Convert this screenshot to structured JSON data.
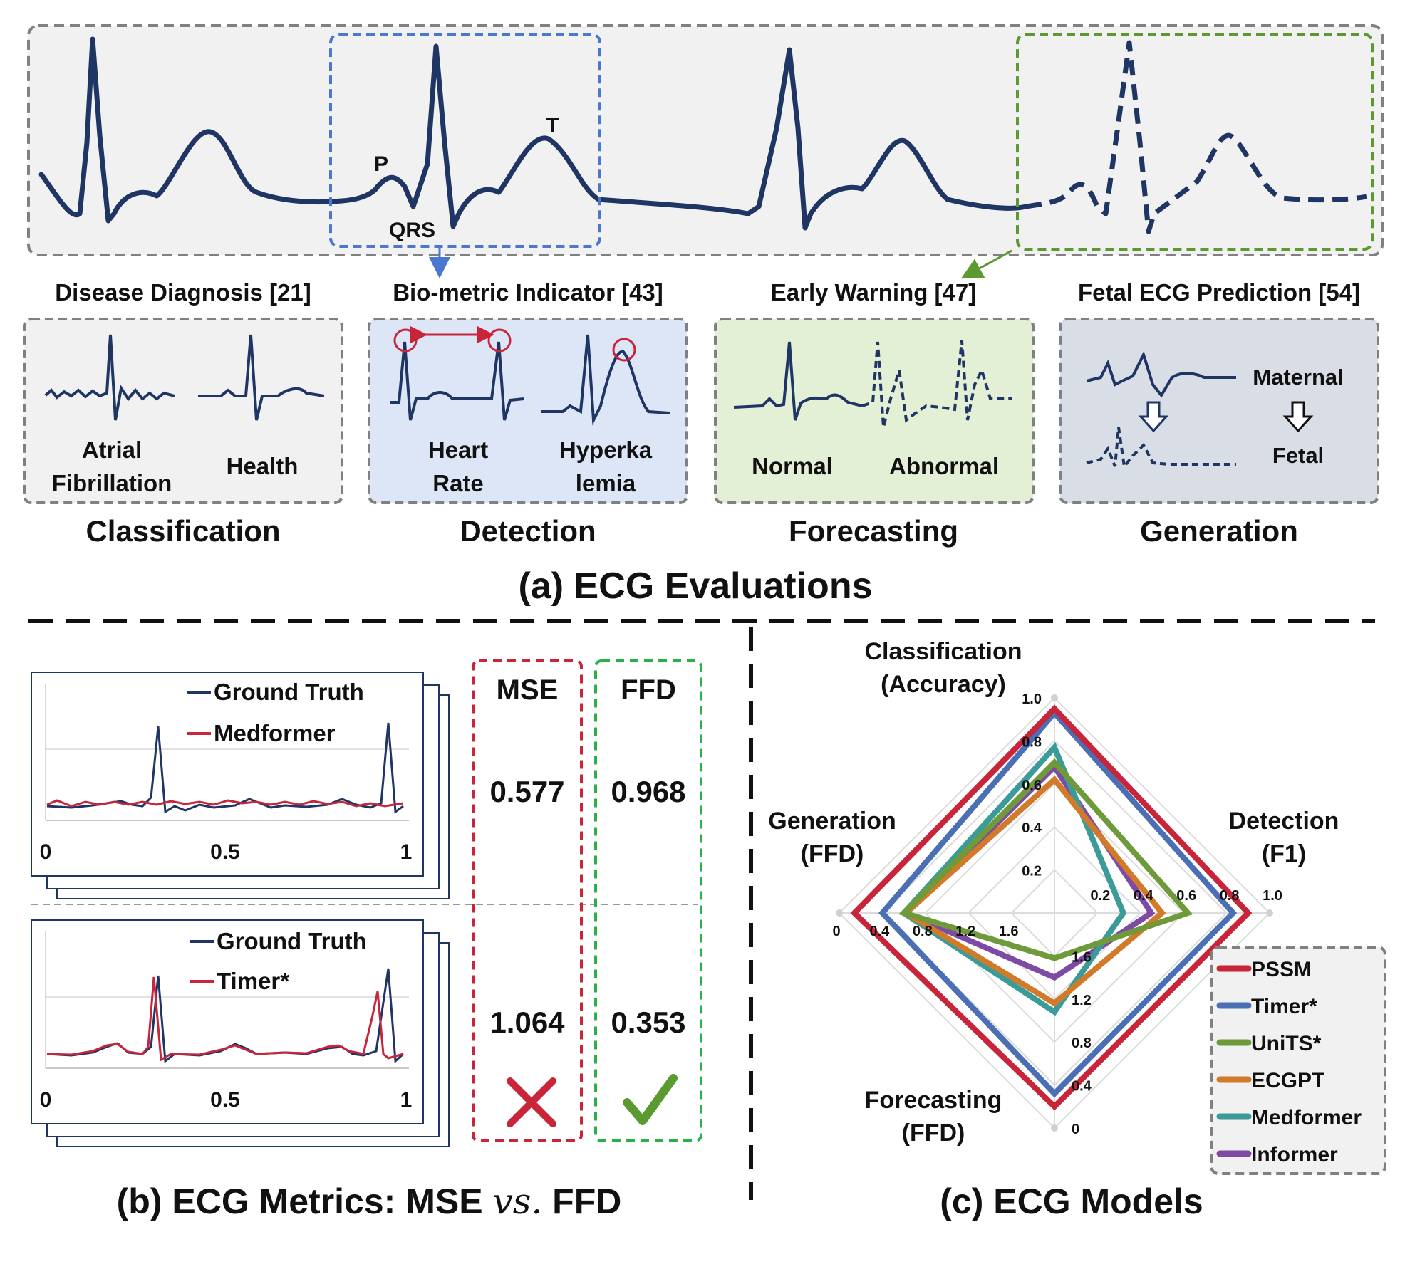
{
  "panel_a": {
    "wave_labels": {
      "p": "P",
      "qrs": "QRS",
      "t": "T"
    },
    "tasks": [
      {
        "title": "Disease Diagnosis [21]",
        "category": "Classification",
        "items": [
          "Atrial Fibrillation",
          "Health"
        ]
      },
      {
        "title": "Bio-metric Indicator [43]",
        "category": "Detection",
        "items": [
          "Heart Rate",
          "Hyperka lemia"
        ]
      },
      {
        "title": "Early Warning [47]",
        "category": "Forecasting",
        "items": [
          "Normal",
          "Abnormal"
        ]
      },
      {
        "title": "Fetal ECG Prediction [54]",
        "category": "Generation",
        "items": [
          "Maternal",
          "Fetal"
        ]
      }
    ],
    "caption": "(a) ECG Evaluations"
  },
  "panel_b": {
    "columns": [
      "MSE",
      "FFD"
    ],
    "comparisons": [
      {
        "legend": [
          "Ground Truth",
          "Medformer"
        ],
        "mse": "0.577",
        "ffd": "0.968",
        "x_ticks": [
          "0",
          "0.5",
          "1"
        ]
      },
      {
        "legend": [
          "Ground Truth",
          "Timer*"
        ],
        "mse": "1.064",
        "ffd": "0.353",
        "x_ticks": [
          "0",
          "0.5",
          "1"
        ]
      }
    ],
    "verdict": {
      "mse": "cross-mark",
      "ffd": "check-mark"
    },
    "caption_pre": "(b) ECG Metrics: MSE ",
    "caption_vs": "vs.",
    "caption_post": " FFD"
  },
  "panel_c": {
    "caption": "(c) ECG Models",
    "colors": {
      "PSSM": "#c8243a",
      "Timer*": "#4a6fb5",
      "UniTS*": "#6e9a3a",
      "ECGPT": "#d07a2a",
      "Medformer": "#3b9b98",
      "Informer": "#7e4aa4"
    },
    "chart_data": {
      "type": "radar",
      "axes": [
        {
          "label": [
            "Classification",
            "(Accuracy)"
          ],
          "ticks": [
            "0.2",
            "0.4",
            "0.6",
            "0.8",
            "1.0"
          ]
        },
        {
          "label": [
            "Detection",
            "(F1)"
          ],
          "ticks": [
            "0.2",
            "0.4",
            "0.6",
            "0.8",
            "1.0"
          ]
        },
        {
          "label": [
            "Forecasting",
            "(FFD)"
          ],
          "ticks": [
            "1.6",
            "1.2",
            "0.8",
            "0.4",
            "0"
          ]
        },
        {
          "label": [
            "Generation",
            "(FFD)"
          ],
          "ticks": [
            "0",
            "0.4",
            "0.8",
            "1.2",
            "1.6"
          ]
        }
      ],
      "series": [
        {
          "name": "PSSM",
          "values": [
            0.95,
            0.9,
            0.9,
            0.93
          ]
        },
        {
          "name": "Timer*",
          "values": [
            0.93,
            0.83,
            0.84,
            0.8
          ]
        },
        {
          "name": "UniTS*",
          "values": [
            0.7,
            0.62,
            0.21,
            0.7
          ]
        },
        {
          "name": "ECGPT",
          "values": [
            0.62,
            0.5,
            0.42,
            0.69
          ]
        },
        {
          "name": "Medformer",
          "values": [
            0.77,
            0.32,
            0.46,
            0.7
          ]
        },
        {
          "name": "Informer",
          "values": [
            0.68,
            0.45,
            0.3,
            0.69
          ]
        }
      ]
    }
  }
}
